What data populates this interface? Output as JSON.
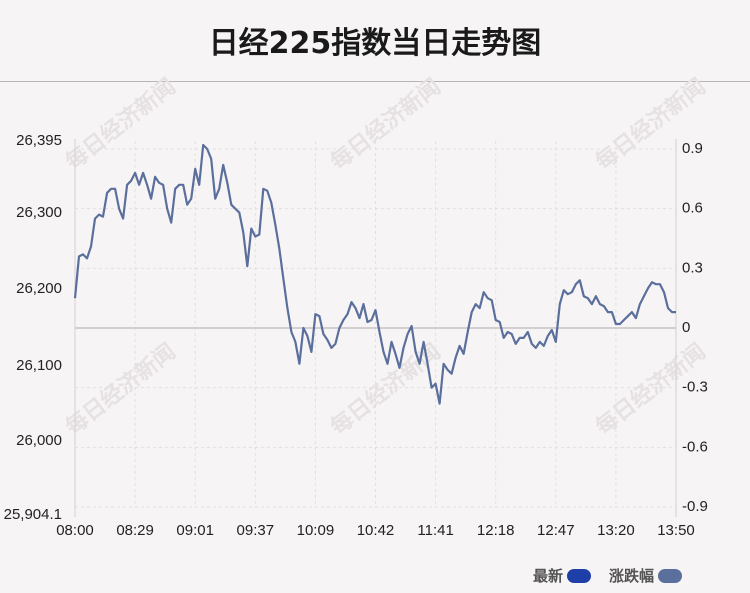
{
  "title": "日经225指数当日走势图",
  "watermark": "每日经济新闻",
  "legend": [
    {
      "label": "最新",
      "color": "#1f3fa8"
    },
    {
      "label": "涨跌幅",
      "color": "#5b6f9c"
    }
  ],
  "chart_data": {
    "type": "line",
    "x_ticks": [
      "08:00",
      "08:29",
      "09:01",
      "09:37",
      "10:09",
      "10:42",
      "11:41",
      "12:18",
      "12:47",
      "13:20",
      "13:50"
    ],
    "y_ticks_left": [
      "26,395",
      "26,300",
      "26,200",
      "26,100",
      "26,000",
      "25,904.1"
    ],
    "y_ticks_right": [
      "0.9",
      "0.6",
      "0.3",
      "0",
      "-0.3",
      "-0.6",
      "-0.9"
    ],
    "ylim_pct": [
      -0.9,
      0.9
    ],
    "line_color": "#5b6f9c",
    "series": [
      {
        "x": [
          0,
          1,
          2,
          3,
          4,
          5,
          6,
          7,
          8,
          9,
          10,
          11,
          12,
          13,
          14,
          15,
          16,
          17,
          18,
          19,
          20,
          21,
          22,
          23,
          24,
          25,
          26,
          27,
          28,
          29,
          30,
          31,
          32,
          33,
          34,
          35,
          36,
          37,
          38,
          39,
          40,
          41,
          42,
          43,
          44,
          45,
          46,
          47,
          48,
          49,
          50,
          51,
          52,
          53,
          54,
          55,
          56,
          57,
          58,
          59,
          60,
          61,
          62,
          63,
          64,
          65,
          66,
          67,
          68,
          69,
          70,
          71,
          72,
          73,
          74,
          75,
          76,
          77,
          78,
          79,
          80,
          81,
          82,
          83,
          84,
          85,
          86,
          87,
          88,
          89,
          90,
          91,
          92,
          93,
          94,
          95,
          96,
          97,
          98,
          99,
          100,
          101,
          102,
          103,
          104,
          105,
          106,
          107,
          108,
          109,
          110,
          111,
          112,
          113,
          114,
          115,
          116,
          117,
          118,
          119,
          120,
          121,
          122,
          123,
          124,
          125,
          126,
          127,
          128,
          129,
          130,
          131,
          132,
          133,
          134,
          135,
          136,
          137,
          138,
          139,
          140,
          141,
          142,
          143,
          144,
          145,
          146,
          147,
          148,
          149,
          150
        ],
        "pct": [
          0.15,
          0.36,
          0.37,
          0.35,
          0.41,
          0.55,
          0.57,
          0.56,
          0.68,
          0.7,
          0.7,
          0.6,
          0.55,
          0.72,
          0.74,
          0.78,
          0.72,
          0.78,
          0.72,
          0.65,
          0.76,
          0.73,
          0.72,
          0.6,
          0.53,
          0.7,
          0.72,
          0.72,
          0.62,
          0.65,
          0.8,
          0.72,
          0.92,
          0.9,
          0.85,
          0.65,
          0.7,
          0.82,
          0.73,
          0.62,
          0.6,
          0.58,
          0.48,
          0.31,
          0.5,
          0.46,
          0.47,
          0.7,
          0.69,
          0.63,
          0.52,
          0.4,
          0.25,
          0.1,
          -0.02,
          -0.07,
          -0.18,
          0.0,
          -0.04,
          -0.12,
          0.07,
          0.06,
          -0.03,
          -0.06,
          -0.1,
          -0.08,
          0.0,
          0.04,
          0.07,
          0.13,
          0.1,
          0.05,
          0.12,
          0.03,
          0.04,
          0.09,
          -0.02,
          -0.12,
          -0.18,
          -0.07,
          -0.13,
          -0.2,
          -0.1,
          -0.03,
          0.01,
          -0.12,
          -0.18,
          -0.07,
          -0.18,
          -0.3,
          -0.28,
          -0.38,
          -0.18,
          -0.21,
          -0.23,
          -0.15,
          -0.09,
          -0.13,
          -0.02,
          0.08,
          0.12,
          0.1,
          0.18,
          0.15,
          0.14,
          0.04,
          0.03,
          -0.05,
          -0.02,
          -0.03,
          -0.08,
          -0.05,
          -0.05,
          -0.02,
          -0.08,
          -0.1,
          -0.07,
          -0.09,
          -0.04,
          -0.01,
          -0.07,
          0.12,
          0.19,
          0.17,
          0.18,
          0.22,
          0.24,
          0.16,
          0.15,
          0.12,
          0.16,
          0.12,
          0.11,
          0.08,
          0.08,
          0.02,
          0.02,
          0.04,
          0.06,
          0.08,
          0.05,
          0.12,
          0.16,
          0.2,
          0.23,
          0.22,
          0.22,
          0.18,
          0.1,
          0.08,
          0.08
        ]
      }
    ]
  }
}
